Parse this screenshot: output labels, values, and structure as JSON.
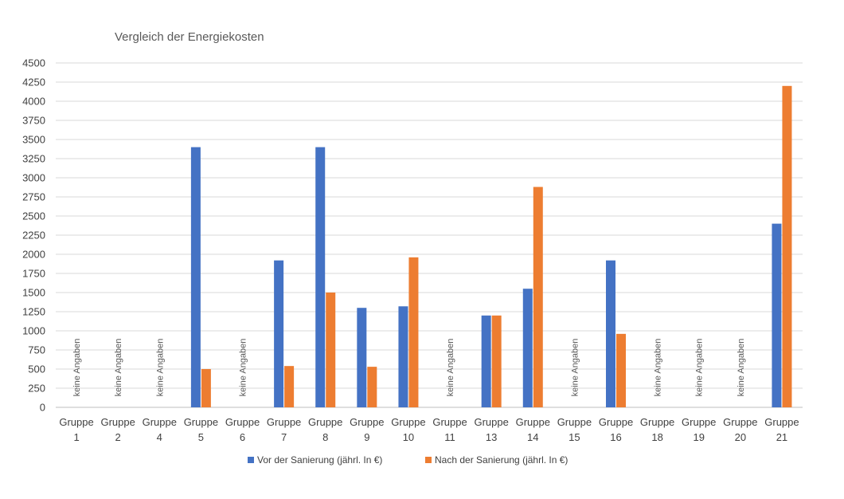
{
  "chart_data": {
    "type": "bar",
    "title": "Vergleich der Energiekosten",
    "xlabel": "",
    "ylabel": "",
    "ylim": [
      0,
      4500
    ],
    "yticks": [
      0,
      250,
      500,
      750,
      1000,
      1250,
      1500,
      1750,
      2000,
      2250,
      2500,
      2750,
      3000,
      3250,
      3500,
      3750,
      4000,
      4250,
      4500
    ],
    "grid": true,
    "legend_position": "bottom",
    "categories": [
      {
        "line1": "Gruppe",
        "line2": "1"
      },
      {
        "line1": "Gruppe",
        "line2": "2"
      },
      {
        "line1": "Gruppe",
        "line2": "4"
      },
      {
        "line1": "Gruppe",
        "line2": "5"
      },
      {
        "line1": "Gruppe",
        "line2": "6"
      },
      {
        "line1": "Gruppe",
        "line2": "7"
      },
      {
        "line1": "Gruppe",
        "line2": "8"
      },
      {
        "line1": "Gruppe",
        "line2": "9"
      },
      {
        "line1": "Gruppe",
        "line2": "10"
      },
      {
        "line1": "Gruppe",
        "line2": "11"
      },
      {
        "line1": "Gruppe",
        "line2": "13"
      },
      {
        "line1": "Gruppe",
        "line2": "14"
      },
      {
        "line1": "Gruppe",
        "line2": "15"
      },
      {
        "line1": "Gruppe",
        "line2": "16"
      },
      {
        "line1": "Gruppe",
        "line2": "18"
      },
      {
        "line1": "Gruppe",
        "line2": "19"
      },
      {
        "line1": "Gruppe",
        "line2": "20"
      },
      {
        "line1": "Gruppe",
        "line2": "21"
      }
    ],
    "series": [
      {
        "name": "Vor der Sanierung (jährl. In €)",
        "color": "#4472c4",
        "values": [
          null,
          null,
          null,
          3400,
          null,
          1920,
          3400,
          1300,
          1320,
          null,
          1200,
          1550,
          null,
          1920,
          null,
          null,
          null,
          2400
        ]
      },
      {
        "name": "Nach der Sanierung (jährl. In €)",
        "color": "#ed7d31",
        "values": [
          null,
          null,
          null,
          500,
          null,
          540,
          1500,
          530,
          1960,
          null,
          1200,
          2880,
          null,
          960,
          null,
          null,
          null,
          4200
        ]
      }
    ],
    "annotations": [
      {
        "category_index": 0,
        "text": "keine Angaben"
      },
      {
        "category_index": 1,
        "text": "keine Angaben"
      },
      {
        "category_index": 2,
        "text": "keine Angaben"
      },
      {
        "category_index": 4,
        "text": "keine Angaben"
      },
      {
        "category_index": 9,
        "text": "keine Angaben"
      },
      {
        "category_index": 12,
        "text": "keine Angaben"
      },
      {
        "category_index": 14,
        "text": "keine Angaben"
      },
      {
        "category_index": 15,
        "text": "keine Angaben"
      },
      {
        "category_index": 16,
        "text": "keine Angaben"
      }
    ]
  }
}
